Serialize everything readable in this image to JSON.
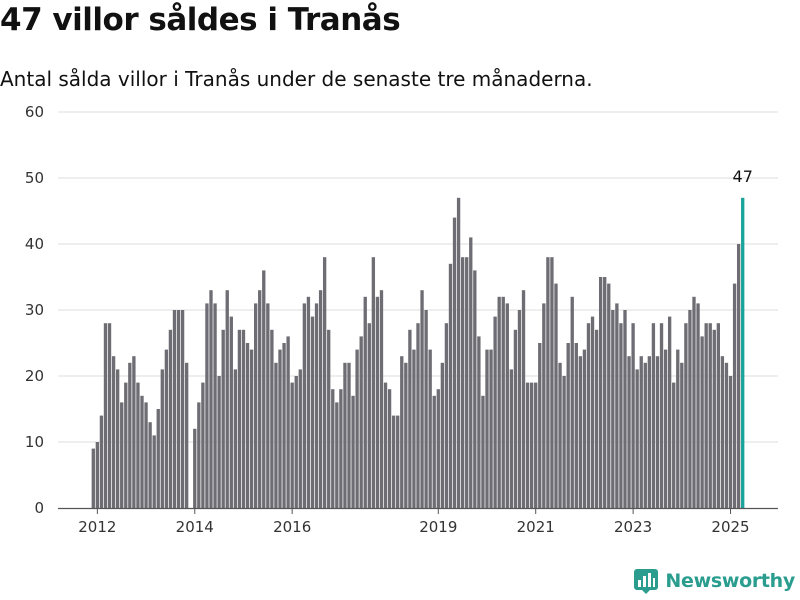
{
  "header": {
    "title": "47 villor såldes i Tranås",
    "subtitle": "Antal sålda villor i Tranås under de senaste tre månaderna."
  },
  "brand": {
    "name": "Newsworthy",
    "icon": "bar-chart-logo-icon"
  },
  "colors": {
    "bar": "#6e6d73",
    "highlight": "#1aa39a",
    "grid": "#dddddd",
    "axis": "#555555",
    "brand": "#2a9d8f"
  },
  "chart_data": {
    "type": "bar",
    "title": "47 villor såldes i Tranås",
    "xlabel": "",
    "ylabel": "",
    "ylim": [
      0,
      60
    ],
    "y_ticks": [
      0,
      10,
      20,
      30,
      40,
      50,
      60
    ],
    "x_ticks": [
      {
        "label": "2012",
        "index": 1
      },
      {
        "label": "2014",
        "index": 25
      },
      {
        "label": "2016",
        "index": 49
      },
      {
        "label": "2019",
        "index": 85
      },
      {
        "label": "2021",
        "index": 109
      },
      {
        "label": "2023",
        "index": 133
      },
      {
        "label": "2025",
        "index": 157
      }
    ],
    "highlight_label": "47",
    "series": [
      {
        "values": [
          9,
          10,
          14,
          28,
          28,
          23,
          21,
          16,
          19,
          22,
          23,
          19,
          17,
          16,
          13,
          11,
          15,
          21,
          24,
          27,
          30,
          30,
          30,
          22,
          0,
          12,
          16,
          19,
          31,
          33,
          31,
          20,
          27,
          33,
          29,
          21,
          27,
          27,
          25,
          24,
          31,
          33,
          36,
          31,
          27,
          22,
          24,
          25,
          26,
          19,
          20,
          21,
          31,
          32,
          29,
          31,
          33,
          38,
          27,
          18,
          16,
          18,
          22,
          22,
          17,
          24,
          26,
          32,
          28,
          38,
          32,
          33,
          19,
          18,
          14,
          14,
          23,
          22,
          27,
          24,
          28,
          33,
          30,
          24,
          17,
          18,
          22,
          28,
          37,
          44,
          47,
          38,
          38,
          41,
          36,
          26,
          17,
          24,
          24,
          29,
          32,
          32,
          31,
          21,
          27,
          30,
          33,
          19,
          19,
          19,
          25,
          31,
          38,
          38,
          34,
          22,
          20,
          25,
          32,
          25,
          23,
          24,
          28,
          29,
          27,
          35,
          35,
          34,
          30,
          31,
          28,
          30,
          23,
          28,
          21,
          23,
          22,
          23,
          28,
          23,
          28,
          24,
          29,
          19,
          24,
          22,
          28,
          30,
          32,
          31,
          26,
          28,
          28,
          27,
          28,
          23,
          22,
          20,
          34,
          40,
          47
        ]
      }
    ]
  }
}
